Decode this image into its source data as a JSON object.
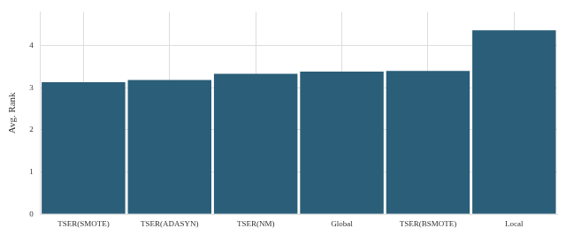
{
  "chart_data": {
    "type": "bar",
    "y_label": "Avg. Rank",
    "categories": [
      "TSER(SMOTE)",
      "TSER(ADASYN)",
      "TSER(NM)",
      "Global",
      "TSER(BSMOTE)",
      "Local"
    ],
    "values": [
      3.13,
      3.18,
      3.33,
      3.38,
      3.4,
      4.36
    ],
    "color": "#2b5e78",
    "ylim": [
      0,
      4.8
    ],
    "yticks": [
      0,
      1,
      2,
      3,
      4
    ],
    "grid": true
  }
}
